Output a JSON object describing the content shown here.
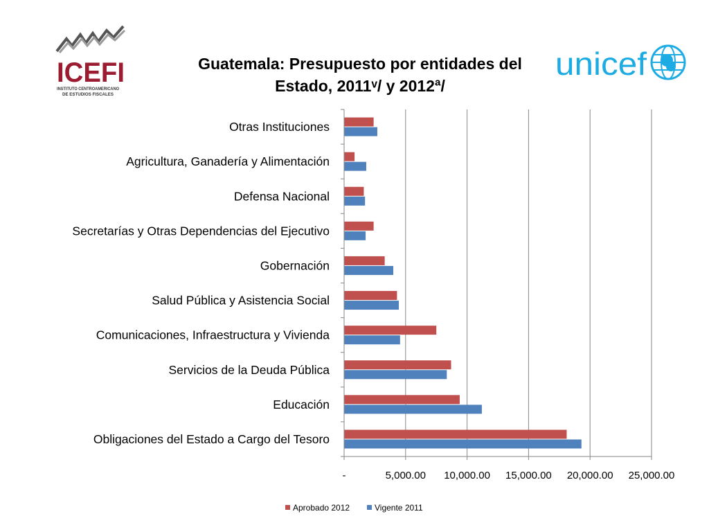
{
  "logos": {
    "icefi": {
      "name": "ICEFI",
      "subtitle_line1": "INSTITUTO CENTROAMERICANO",
      "subtitle_line2": "DE ESTUDIOS FISCALES"
    },
    "unicef": {
      "name": "unicef"
    }
  },
  "colors": {
    "aprobado": "#C0504D",
    "vigente": "#4F81BD",
    "icefi_red": "#9B1B30",
    "unicef_blue": "#1CABE2"
  },
  "chart_data": {
    "type": "bar",
    "orientation": "horizontal",
    "title_line1": "Guatemala: Presupuesto por entidades del",
    "title_line2": "Estado, 2011ᵛ/ y 2012ª/",
    "categories": [
      "Otras Instituciones",
      "Agricultura, Ganadería y Alimentación",
      "Defensa Nacional",
      "Secretarías y Otras Dependencias del Ejecutivo",
      "Gobernación",
      "Salud Pública y Asistencia Social",
      "Comunicaciones, Infraestructura y Vivienda",
      "Servicios de la Deuda Pública",
      "Educación",
      "Obligaciones del Estado a Cargo del Tesoro"
    ],
    "series": [
      {
        "name": "Aprobado 2012",
        "color": "#C0504D",
        "values": [
          2400,
          850,
          1600,
          2400,
          3300,
          4300,
          7500,
          8700,
          9400,
          18100
        ]
      },
      {
        "name": "Vigente 2011",
        "color": "#4F81BD",
        "values": [
          2700,
          1800,
          1700,
          1750,
          4000,
          4450,
          4550,
          8350,
          11200,
          19300
        ]
      }
    ],
    "xlim": [
      0,
      25000
    ],
    "ticks": [
      0,
      5000,
      10000,
      15000,
      20000,
      25000
    ],
    "tick_labels": [
      "-",
      "5,000.00",
      "10,000.00",
      "15,000.00",
      "20,000.00",
      "25,000.00"
    ],
    "grid": true,
    "legend_position": "bottom",
    "xlabel": "",
    "ylabel": ""
  }
}
